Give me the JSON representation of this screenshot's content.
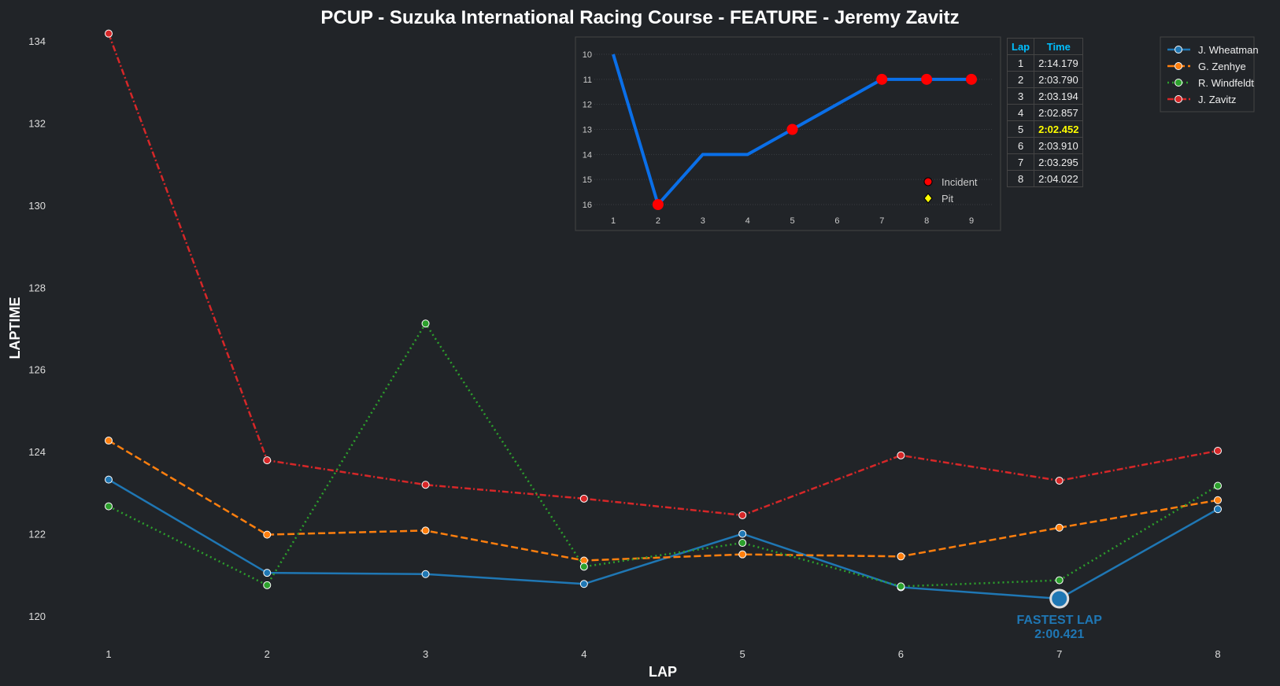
{
  "chart_data": [
    {
      "type": "line",
      "title": "PCUP - Suzuka International Racing Course - FEATURE - Jeremy Zavitz",
      "xlabel": "LAP",
      "ylabel": "LAPTIME",
      "x": [
        1,
        2,
        3,
        4,
        5,
        6,
        7,
        8
      ],
      "ylim": [
        119.4,
        134.4
      ],
      "yticks": [
        120,
        122,
        124,
        126,
        128,
        130,
        132,
        134
      ],
      "grid": false,
      "legend_position": "top-right",
      "series": [
        {
          "name": "J. Wheatman",
          "color": "#1f77b4",
          "dash": "solid",
          "values": [
            123.32,
            121.05,
            121.02,
            120.78,
            122.0,
            120.7,
            120.421,
            122.6
          ]
        },
        {
          "name": "G. Zenhye",
          "color": "#ff7f0e",
          "dash": "dashed",
          "values": [
            124.27,
            121.98,
            122.08,
            121.35,
            121.5,
            121.45,
            122.15,
            122.82
          ]
        },
        {
          "name": "R. Windfeldt",
          "color": "#2ca02c",
          "dash": "dotted",
          "values": [
            122.67,
            120.75,
            127.12,
            121.2,
            121.78,
            120.72,
            120.87,
            123.17
          ]
        },
        {
          "name": "J. Zavitz",
          "color": "#d62728",
          "dash": "dashdot",
          "values": [
            134.179,
            123.79,
            123.194,
            122.857,
            122.452,
            123.91,
            123.295,
            124.022
          ]
        }
      ],
      "annotation": {
        "label": "FASTEST LAP",
        "value": "2:00.421",
        "lap": 7,
        "laptime": 120.421
      }
    },
    {
      "type": "line",
      "title": "",
      "x": [
        1,
        2,
        3,
        4,
        5,
        6,
        7,
        8,
        9
      ],
      "positions": [
        10,
        16,
        14,
        14,
        13,
        12,
        11,
        11,
        11
      ],
      "ylim": [
        16.4,
        9.7
      ],
      "yticks": [
        10,
        11,
        12,
        13,
        14,
        15,
        16
      ],
      "incident_laps": [
        2,
        5,
        7,
        8,
        9
      ],
      "pit_laps": [],
      "legend": [
        "Incident",
        "Pit"
      ],
      "color": "#0a6fe8"
    }
  ],
  "table": {
    "headers": [
      "Lap",
      "Time"
    ],
    "rows": [
      [
        "1",
        "2:14.179"
      ],
      [
        "2",
        "2:03.790"
      ],
      [
        "3",
        "2:03.194"
      ],
      [
        "4",
        "2:02.857"
      ],
      [
        "5",
        "2:02.452"
      ],
      [
        "6",
        "2:03.910"
      ],
      [
        "7",
        "2:03.295"
      ],
      [
        "8",
        "2:04.022"
      ]
    ],
    "best_row": 4
  }
}
